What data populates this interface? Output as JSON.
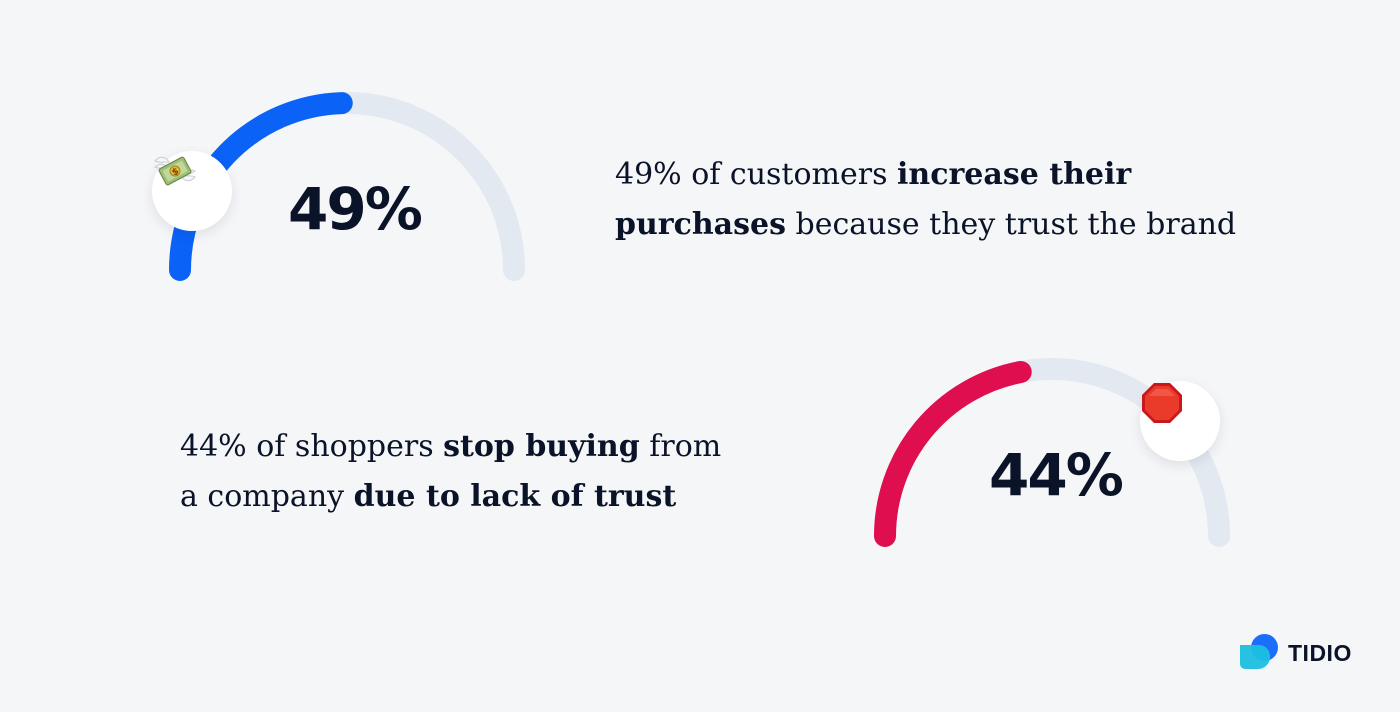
{
  "chart_data": [
    {
      "type": "gauge",
      "value": 49,
      "max": 100,
      "label": "49%",
      "color": "#0a63f6",
      "track_color": "#e3e9f1",
      "icon": "money-with-wings-icon",
      "text": {
        "p1": "49% of customers ",
        "b1": "increase their purchases",
        "p2": " because they trust the brand"
      }
    },
    {
      "type": "gauge",
      "value": 44,
      "max": 100,
      "label": "44%",
      "color": "#df0e4e",
      "track_color": "#e3e9f1",
      "icon": "stop-sign-icon",
      "text": {
        "p1": "44% of shoppers ",
        "b1": "stop buying",
        "p2": " from a company ",
        "b2": "due to lack of trust"
      }
    }
  ],
  "brand": {
    "name": "TIDIO"
  }
}
